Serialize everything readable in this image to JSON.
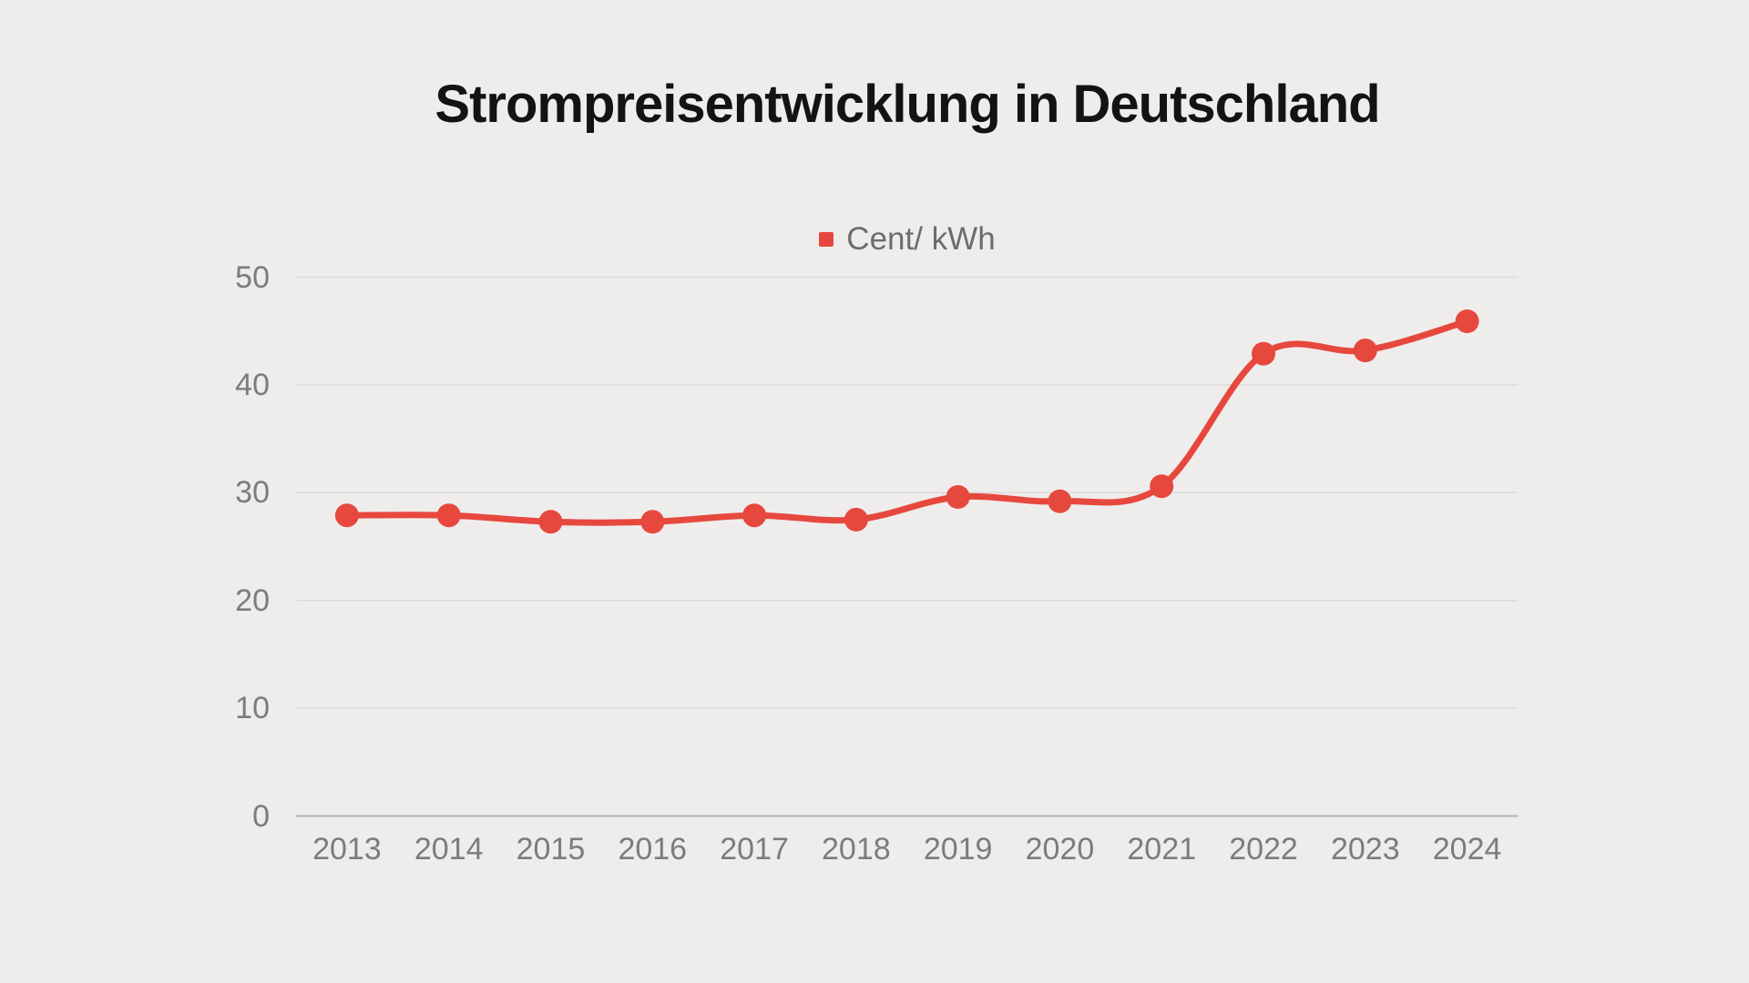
{
  "page": {
    "background_color": "#efedec"
  },
  "chart": {
    "title": "Strompreisentwicklung in Deutschland",
    "legend_label": "Cent/ kWh"
  },
  "chart_data": {
    "type": "line",
    "title": "Strompreisentwicklung in Deutschland",
    "categories": [
      "2013",
      "2014",
      "2015",
      "2016",
      "2017",
      "2018",
      "2019",
      "2020",
      "2021",
      "2022",
      "2023",
      "2024"
    ],
    "series": [
      {
        "name": "Cent/ kWh",
        "values": [
          27.9,
          27.9,
          27.3,
          27.3,
          27.9,
          27.5,
          29.6,
          29.2,
          30.6,
          42.9,
          43.2,
          45.9
        ]
      }
    ],
    "xlabel": "",
    "ylabel": "",
    "ylim": [
      0,
      50
    ],
    "yticks": [
      0,
      10,
      20,
      30,
      40,
      50
    ],
    "grid": "horizontal-only",
    "line_smoothing": true,
    "marker": "circle",
    "legend_position": "top-center",
    "colors": {
      "line": "#e7483e",
      "point": "#e7483e",
      "legend_marker": "#e7483e",
      "grid": "#dddbd8",
      "axis_line": "#b4b2b0",
      "tick_label": "#7d7c7a",
      "legend_text": "#6e6d6b",
      "title_text": "#131313",
      "background": "#efedec"
    }
  }
}
